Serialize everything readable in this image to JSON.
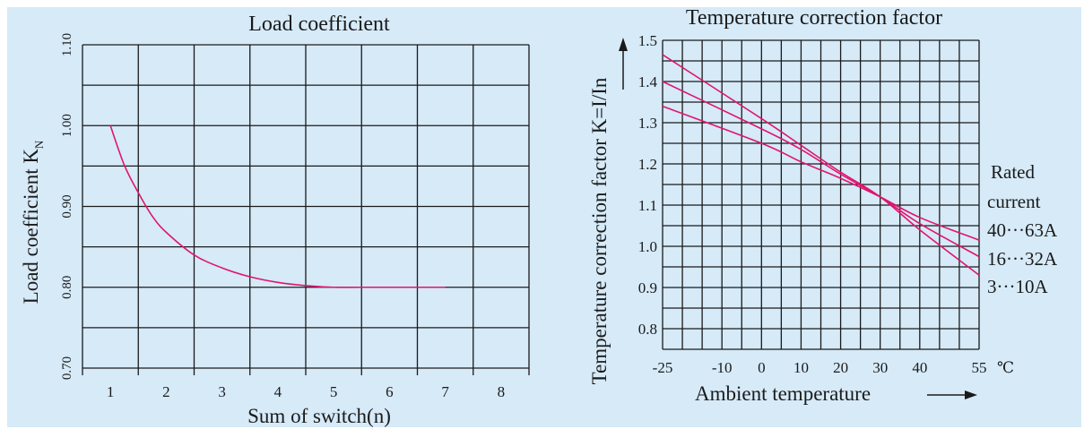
{
  "colors": {
    "background": "#d6eaf8",
    "curve": "#e0156e",
    "grid": "#1a1a1a"
  },
  "chart_data": [
    {
      "type": "line",
      "title": "Load coefficient",
      "xlabel": "Sum of switch(n)",
      "ylabel_main": "Load coefficient K",
      "ylabel_sub": "N",
      "x_ticks": [
        "1",
        "2",
        "3",
        "4",
        "5",
        "6",
        "7",
        "8"
      ],
      "y_ticks": [
        "0.70",
        "0.80",
        "0.90",
        "1.00",
        "1.10"
      ],
      "xlim": [
        0.5,
        8.5
      ],
      "ylim": [
        0.7,
        1.1
      ],
      "x_gridlines": [
        0.5,
        1.5,
        2.5,
        3.5,
        4.5,
        5.5,
        6.5,
        7.5,
        8.5
      ],
      "y_gridlines": [
        0.7,
        0.75,
        0.8,
        0.85,
        0.9,
        0.95,
        1.0,
        1.05,
        1.1
      ],
      "series": [
        {
          "x": [
            1,
            1.25,
            1.5,
            1.75,
            2,
            2.5,
            3,
            3.5,
            4,
            4.5,
            5,
            5.5,
            6,
            6.5,
            7
          ],
          "y": [
            1.0,
            0.951,
            0.917,
            0.888,
            0.868,
            0.84,
            0.824,
            0.813,
            0.806,
            0.802,
            0.8,
            0.8,
            0.8,
            0.8,
            0.8
          ]
        }
      ]
    },
    {
      "type": "line",
      "title": "Temperature correction factor",
      "xlabel": "Ambient temperature",
      "ylabel": "Temperature correction factor K=I/In",
      "x_ticks": [
        "-25",
        "-10",
        "0",
        "10",
        "20",
        "30",
        "40",
        "55"
      ],
      "x_tick_values": [
        -25,
        -10,
        0,
        10,
        20,
        30,
        40,
        55
      ],
      "x_unit": "℃",
      "y_ticks": [
        "0.8",
        "0.9",
        "1.0",
        "1.1",
        "1.2",
        "1.3",
        "1.4",
        "1.5"
      ],
      "y_tick_values": [
        0.8,
        0.9,
        1.0,
        1.1,
        1.2,
        1.3,
        1.4,
        1.5
      ],
      "xlim": [
        -25,
        55
      ],
      "ylim": [
        0.75,
        1.5
      ],
      "x_grid_step": 5,
      "y_grid_step": 0.05,
      "legend_title": [
        "Rated",
        "current"
      ],
      "series": [
        {
          "name": "40···63A",
          "x": [
            -25,
            0,
            10,
            20,
            30,
            40,
            55
          ],
          "y": [
            1.34,
            1.25,
            1.205,
            1.165,
            1.12,
            1.07,
            1.015
          ]
        },
        {
          "name": "16···32A",
          "x": [
            -25,
            0,
            10,
            20,
            30,
            40,
            55
          ],
          "y": [
            1.4,
            1.285,
            1.235,
            1.175,
            1.12,
            1.055,
            0.975
          ]
        },
        {
          "name": "3···10A",
          "x": [
            -25,
            0,
            10,
            20,
            30,
            40,
            55
          ],
          "y": [
            1.465,
            1.31,
            1.245,
            1.18,
            1.12,
            1.04,
            0.93
          ]
        }
      ]
    }
  ]
}
